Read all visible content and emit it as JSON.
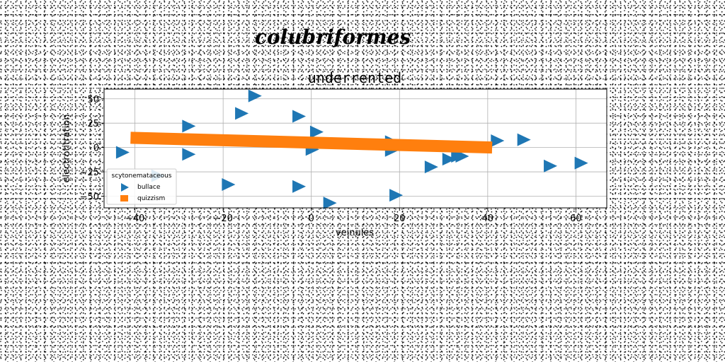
{
  "figure": {
    "suptitle": "colubriformes"
  },
  "chart_data": {
    "type": "scatter",
    "title": "underrented",
    "xlabel": "veinules",
    "ylabel": "electrotitration",
    "xlim": [
      -47,
      67
    ],
    "ylim": [
      -62,
      60
    ],
    "xticks": [
      -40,
      -20,
      0,
      20,
      40,
      60
    ],
    "yticks": [
      -50,
      -25,
      0,
      25,
      50
    ],
    "grid": true,
    "legend": {
      "title": "scytonemataceous",
      "placement": "lower-left"
    },
    "series": [
      {
        "name": "bullace",
        "marker": "triangle-right",
        "color": "#1f77b4",
        "points": [
          [
            -43,
            -5
          ],
          [
            -35,
            -29
          ],
          [
            -28,
            22
          ],
          [
            -28,
            -7
          ],
          [
            -19,
            -38
          ],
          [
            -16,
            35
          ],
          [
            -13,
            53
          ],
          [
            -3,
            32
          ],
          [
            -3,
            -40
          ],
          [
            0,
            -2
          ],
          [
            1,
            16
          ],
          [
            4,
            -57
          ],
          [
            18,
            6
          ],
          [
            18,
            -3
          ],
          [
            19,
            -49
          ],
          [
            27,
            -20
          ],
          [
            31,
            -12
          ],
          [
            33,
            -9
          ],
          [
            34,
            -9
          ],
          [
            42,
            7
          ],
          [
            48,
            8
          ],
          [
            54,
            -19
          ],
          [
            61,
            -16
          ]
        ]
      },
      {
        "name": "quizzism",
        "marker": "line",
        "color": "#ff7f0e",
        "points": [
          [
            -41,
            10
          ],
          [
            41,
            0
          ]
        ]
      }
    ]
  }
}
